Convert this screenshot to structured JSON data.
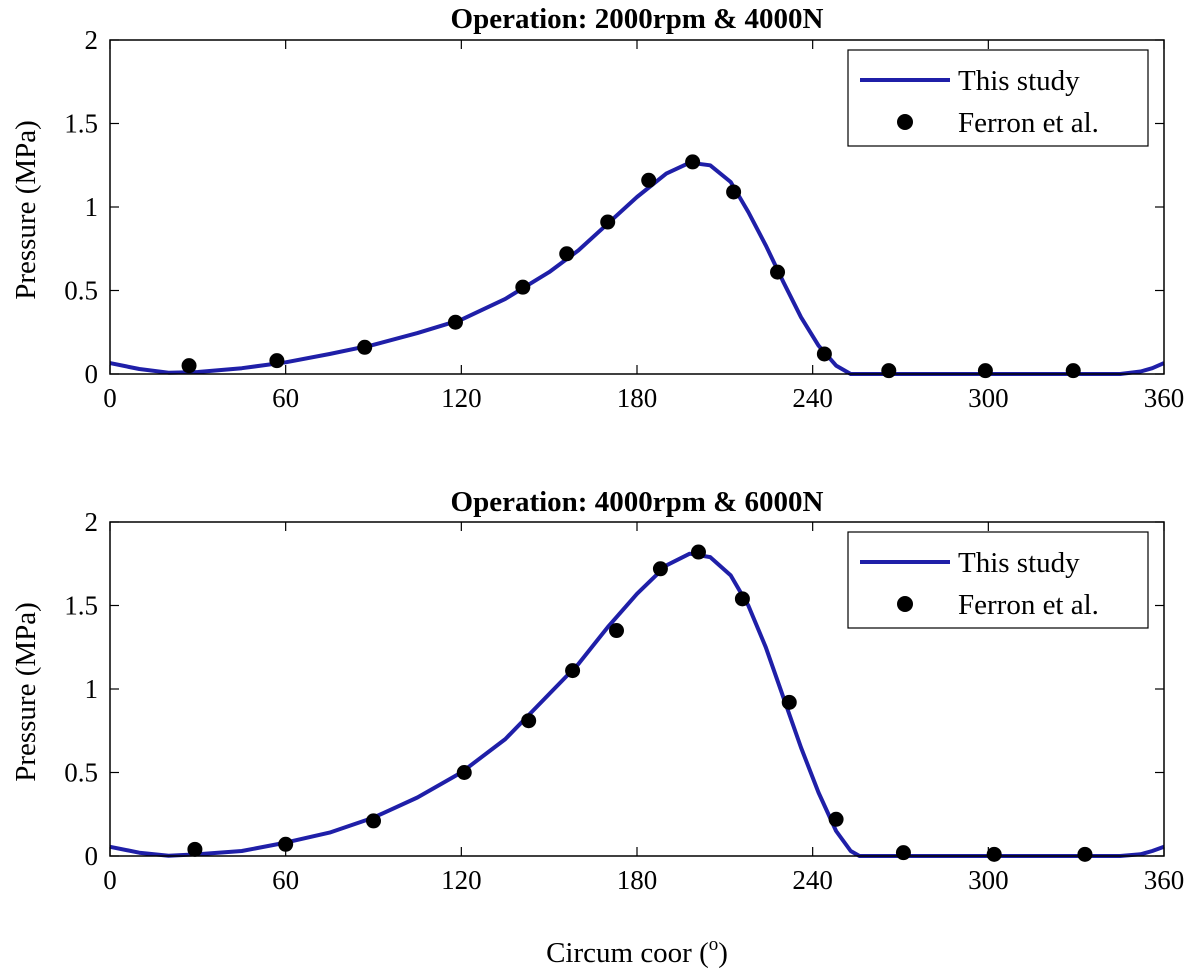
{
  "chart_data": [
    {
      "type": "line",
      "title": "Operation: 2000rpm & 4000N",
      "xlabel": "",
      "ylabel": "Pressure (MPa)",
      "xlim": [
        0,
        360
      ],
      "ylim": [
        0,
        2
      ],
      "xticks": [
        0,
        60,
        120,
        180,
        240,
        300,
        360
      ],
      "xtick_labels": [
        "0",
        "60",
        "120",
        "180",
        "240",
        "300",
        "360"
      ],
      "yticks": [
        0,
        0.5,
        1,
        1.5,
        2
      ],
      "ytick_labels": [
        "0",
        "0.5",
        "1",
        "1.5",
        "2"
      ],
      "grid": false,
      "legend_position": "top-right",
      "legend": [
        "This study",
        "Ferron et al."
      ],
      "series": [
        {
          "name": "This study",
          "kind": "line",
          "color": "#1f1fa8",
          "x": [
            0,
            10,
            20,
            30,
            45,
            60,
            75,
            90,
            105,
            120,
            135,
            150,
            160,
            170,
            180,
            190,
            198,
            205,
            212,
            218,
            224,
            230,
            236,
            242,
            248,
            253,
            256,
            260,
            270,
            300,
            330,
            345,
            352,
            356,
            360
          ],
          "y": [
            0.065,
            0.03,
            0.008,
            0.012,
            0.035,
            0.07,
            0.12,
            0.175,
            0.245,
            0.325,
            0.45,
            0.61,
            0.74,
            0.9,
            1.06,
            1.2,
            1.265,
            1.25,
            1.15,
            0.97,
            0.77,
            0.55,
            0.34,
            0.17,
            0.05,
            0.0,
            0.0,
            0.0,
            0.0,
            0.0,
            0.0,
            0.0,
            0.015,
            0.035,
            0.065
          ]
        },
        {
          "name": "Ferron et al.",
          "kind": "scatter",
          "color": "#000000",
          "x": [
            27,
            57,
            87,
            118,
            141,
            156,
            170,
            184,
            199,
            213,
            228,
            244,
            266,
            299,
            329
          ],
          "y": [
            0.05,
            0.08,
            0.16,
            0.31,
            0.52,
            0.72,
            0.91,
            1.16,
            1.27,
            1.09,
            0.61,
            0.12,
            0.02,
            0.02,
            0.02
          ]
        }
      ]
    },
    {
      "type": "line",
      "title": "Operation: 4000rpm & 6000N",
      "xlabel": "Circum coor (°)",
      "ylabel": "Pressure (MPa)",
      "xlim": [
        0,
        360
      ],
      "ylim": [
        0,
        2
      ],
      "xticks": [
        0,
        60,
        120,
        180,
        240,
        300,
        360
      ],
      "xtick_labels": [
        "0",
        "60",
        "120",
        "180",
        "240",
        "300",
        "360"
      ],
      "yticks": [
        0,
        0.5,
        1,
        1.5,
        2
      ],
      "ytick_labels": [
        "0",
        "0.5",
        "1",
        "1.5",
        "2"
      ],
      "grid": false,
      "legend_position": "top-right",
      "legend": [
        "This study",
        "Ferron et al."
      ],
      "series": [
        {
          "name": "This study",
          "kind": "line",
          "color": "#1f1fa8",
          "x": [
            0,
            10,
            20,
            30,
            45,
            60,
            75,
            90,
            105,
            120,
            135,
            150,
            160,
            170,
            180,
            190,
            198,
            205,
            212,
            218,
            224,
            230,
            236,
            242,
            248,
            253,
            256,
            258,
            270,
            300,
            330,
            345,
            352,
            356,
            360
          ],
          "y": [
            0.055,
            0.02,
            0.002,
            0.01,
            0.03,
            0.08,
            0.14,
            0.23,
            0.35,
            0.5,
            0.7,
            0.97,
            1.15,
            1.37,
            1.57,
            1.74,
            1.81,
            1.79,
            1.68,
            1.5,
            1.25,
            0.95,
            0.65,
            0.38,
            0.15,
            0.03,
            0.0,
            0.0,
            0.0,
            0.0,
            0.0,
            0.0,
            0.01,
            0.03,
            0.055
          ]
        },
        {
          "name": "Ferron et al.",
          "kind": "scatter",
          "color": "#000000",
          "x": [
            29,
            60,
            90,
            121,
            143,
            158,
            173,
            188,
            201,
            216,
            232,
            248,
            271,
            302,
            333
          ],
          "y": [
            0.04,
            0.07,
            0.21,
            0.5,
            0.81,
            1.11,
            1.35,
            1.72,
            1.82,
            1.54,
            0.92,
            0.22,
            0.02,
            0.01,
            0.01
          ]
        }
      ]
    }
  ],
  "figure": {
    "xlabel_prefix": "Circum coor (",
    "xlabel_degree_sup": "o",
    "xlabel_suffix": ")"
  }
}
